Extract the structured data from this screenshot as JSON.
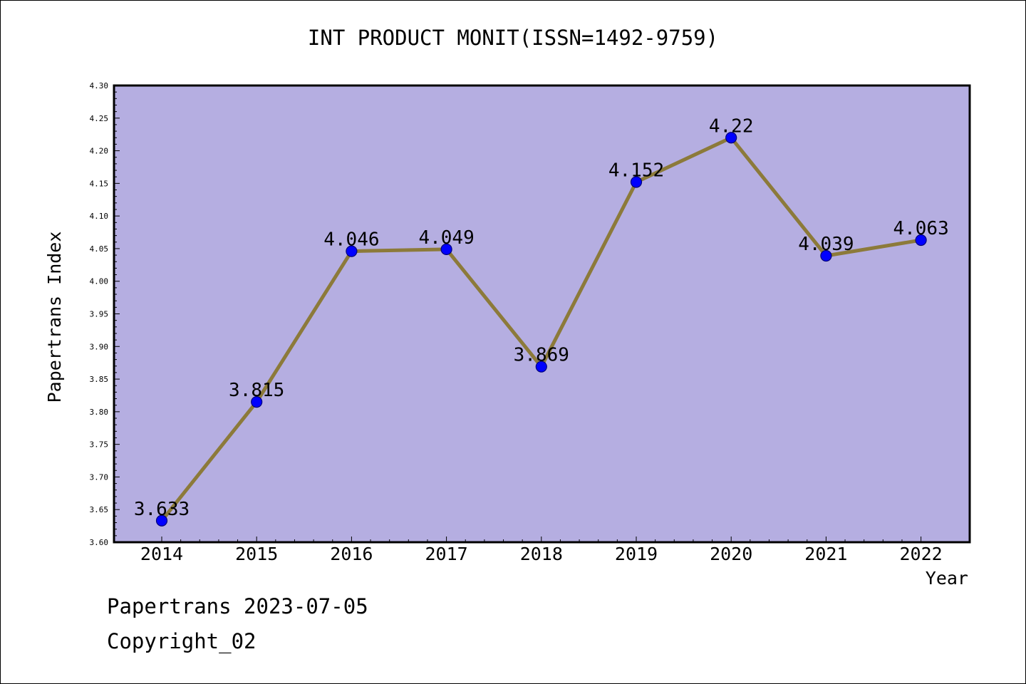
{
  "colors": {
    "plot_background": "#b5aee1",
    "line": "#8c7a3a",
    "marker": "#0000ff",
    "marker_edge": "#00007a",
    "axis": "#000000"
  },
  "chart_data": {
    "type": "line",
    "title": "INT PRODUCT MONIT(ISSN=1492-9759)",
    "xlabel": "Year",
    "ylabel": "Papertrans Index",
    "categories": [
      "2014",
      "2015",
      "2016",
      "2017",
      "2018",
      "2019",
      "2020",
      "2021",
      "2022"
    ],
    "values": [
      3.633,
      3.815,
      4.046,
      4.049,
      3.869,
      4.152,
      4.22,
      4.039,
      4.063
    ],
    "data_labels": [
      "3.633",
      "3.815",
      "4.046",
      "4.049",
      "3.869",
      "4.152",
      "4.22",
      "4.039",
      "4.063"
    ],
    "ylim": [
      3.6,
      4.3
    ],
    "yticks": [
      "3.60",
      "3.65",
      "3.70",
      "3.75",
      "3.80",
      "3.85",
      "3.90",
      "3.95",
      "4.00",
      "4.05",
      "4.10",
      "4.15",
      "4.20",
      "4.25",
      "4.30"
    ],
    "grid": false,
    "legend": "none"
  },
  "footer": {
    "date_line": "Papertrans 2023-07-05",
    "copyright": "Copyright_02"
  }
}
